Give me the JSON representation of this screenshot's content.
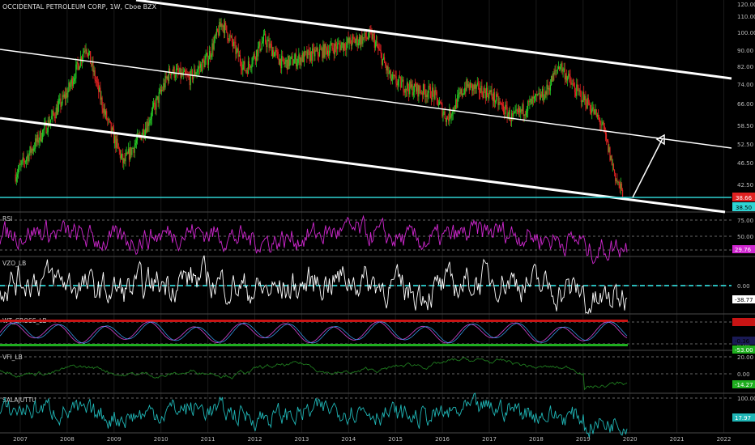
{
  "header": {
    "symbol_title": "OCCIDENTAL PETROLEUM CORP, 1W, Cboe BZX"
  },
  "colors": {
    "background": "#000000",
    "up_candle": "#26c826",
    "down_candle": "#e02222",
    "channel_line": "#ffffff",
    "support_line": "#2fd3d3",
    "rsi_line": "#d027d0",
    "vzo_line": "#ffffff",
    "vzo_zero_line": "#2fd3d3",
    "wt_band_top": "#c81414",
    "wt_band_bottom": "#1fae1f",
    "vfi_line": "#1f7a1f",
    "salajuttu_line": "#1fb5b5",
    "price_label_red": "#e02222",
    "price_label_cyan": "#2fd3d3"
  },
  "chart_data": {
    "type": "candlestick",
    "title": "OCCIDENTAL PETROLEUM CORP, 1W, Cboe BZX",
    "x_axis": {
      "tick_labels": [
        "2007",
        "2008",
        "2009",
        "2010",
        "2011",
        "2012",
        "2013",
        "2014",
        "2015",
        "2016",
        "2017",
        "2018",
        "2019",
        "2020",
        "2021",
        "2022"
      ]
    },
    "price_axis": {
      "scale": "log",
      "tick_labels": [
        "120.00",
        "110.00",
        "100.00",
        "90.00",
        "82.00",
        "74.00",
        "66.00",
        "58.50",
        "52.50",
        "46.50",
        "42.50",
        "38.66",
        "34.50"
      ],
      "current_price_label": "38.66",
      "secondary_price_label": "38.50"
    },
    "price_series_approx": {
      "years": [
        2006.9,
        2007.5,
        2008.0,
        2008.4,
        2008.8,
        2009.2,
        2009.7,
        2010.2,
        2010.6,
        2011.0,
        2011.3,
        2011.8,
        2012.2,
        2012.6,
        2013.0,
        2013.5,
        2014.0,
        2014.5,
        2014.9,
        2015.3,
        2015.8,
        2016.1,
        2016.5,
        2017.0,
        2017.5,
        2017.9,
        2018.2,
        2018.5,
        2018.8,
        2019.1,
        2019.4,
        2019.7,
        2019.85
      ],
      "close": [
        45,
        58,
        72,
        95,
        64,
        48,
        60,
        82,
        78,
        88,
        108,
        82,
        98,
        85,
        88,
        92,
        96,
        100,
        78,
        74,
        72,
        62,
        75,
        72,
        62,
        68,
        72,
        85,
        74,
        68,
        60,
        44,
        40
      ]
    },
    "annotations": {
      "channel_lines": "three parallel descending white lines",
      "support_level": 38.66,
      "projection_arrow": "white arrow pointing up from the current low toward the middle channel line"
    },
    "indicators": [
      {
        "name": "RSI",
        "levels": [
          "75.00",
          "50.00",
          "25.00"
        ],
        "last_value_label": "29.76"
      },
      {
        "name": "VZO_LB",
        "levels": [
          "0.00"
        ],
        "last_value_label": "-38.77"
      },
      {
        "name": "WT_CROSS_LB",
        "levels": [
          "53.00",
          "0.00"
        ],
        "last_value_labels": [
          "-0.36",
          "-53.00"
        ]
      },
      {
        "name": "VFI_LB",
        "levels": [
          "20.00",
          "0.00"
        ],
        "last_value_label": "-14.27"
      },
      {
        "name": "SALAJUTTU",
        "levels": [
          "100.00"
        ],
        "last_value_label": "17.97"
      }
    ]
  }
}
